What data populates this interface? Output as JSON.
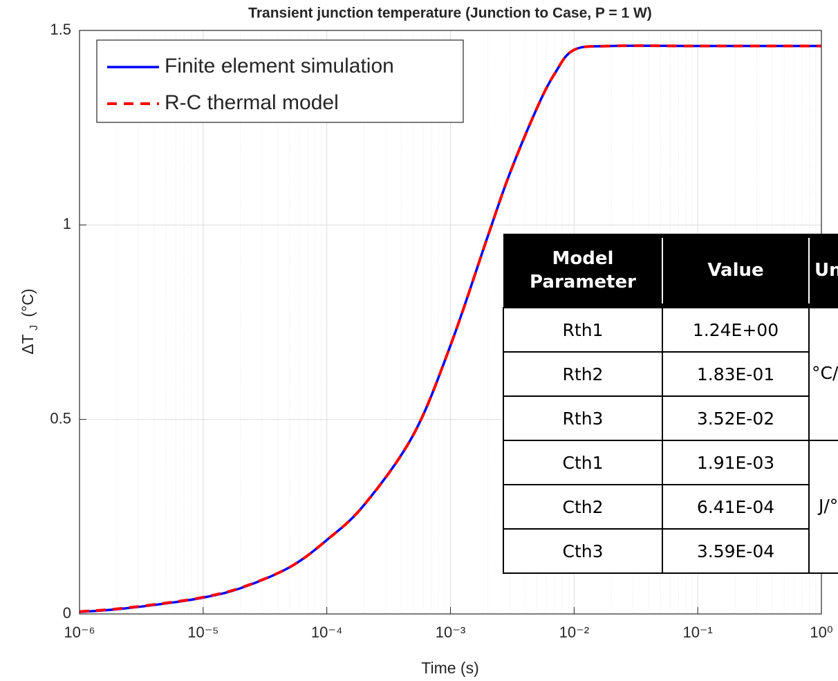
{
  "chart_data": {
    "type": "line",
    "title": "Transient junction temperature (Junction to Case, P = 1 W)",
    "x_label": "Time (s)",
    "y_label": "ΔT",
    "y_label_sub": "J",
    "y_label_unit": "(°C)",
    "x": [
      1e-06,
      2e-06,
      5e-06,
      1e-05,
      2e-05,
      5e-05,
      0.0001,
      0.0002,
      0.0005,
      0.001,
      0.002,
      0.003,
      0.005,
      0.007,
      0.01,
      0.02,
      0.1,
      1
    ],
    "series": [
      {
        "name": "Finite element simulation",
        "color": "#0000ff",
        "line_style": "solid",
        "values": [
          0.005,
          0.012,
          0.027,
          0.042,
          0.066,
          0.12,
          0.19,
          0.28,
          0.46,
          0.69,
          0.97,
          1.13,
          1.3,
          1.39,
          1.45,
          1.46,
          1.46,
          1.46
        ]
      },
      {
        "name": "R-C thermal model",
        "color": "#ff0000",
        "line_style": "dashed",
        "values": [
          0.006,
          0.013,
          0.028,
          0.043,
          0.067,
          0.12,
          0.19,
          0.28,
          0.46,
          0.69,
          0.97,
          1.13,
          1.3,
          1.39,
          1.45,
          1.46,
          1.46,
          1.46
        ]
      }
    ],
    "xlim": [
      1e-06,
      1
    ],
    "ylim": [
      0,
      1.5
    ],
    "log_x": true,
    "xticks": [
      {
        "value": 1e-06,
        "label": "10⁻⁶"
      },
      {
        "value": 1e-05,
        "label": "10⁻⁵"
      },
      {
        "value": 0.0001,
        "label": "10⁻⁴"
      },
      {
        "value": 0.001,
        "label": "10⁻³"
      },
      {
        "value": 0.01,
        "label": "10⁻²"
      },
      {
        "value": 0.1,
        "label": "10⁻¹"
      },
      {
        "value": 1,
        "label": "10⁰"
      }
    ],
    "yticks": [
      0,
      0.5,
      1,
      1.5
    ],
    "grid": true,
    "legend": "northwest"
  },
  "table": {
    "headers": [
      [
        "Model",
        "Parameter"
      ],
      [
        "Value"
      ],
      [
        "Units"
      ]
    ],
    "rows": [
      [
        "Rth1",
        "1.24E+00"
      ],
      [
        "Rth2",
        "1.83E-01"
      ],
      [
        "Rth3",
        "3.52E-02"
      ],
      [
        "Cth1",
        "1.91E-03"
      ],
      [
        "Cth2",
        "6.41E-04"
      ],
      [
        "Cth3",
        "3.59E-04"
      ]
    ],
    "units": [
      "°C/W",
      "J/°C"
    ]
  }
}
